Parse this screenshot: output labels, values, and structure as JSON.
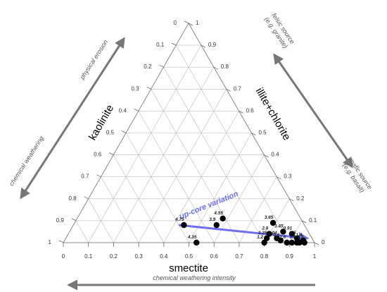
{
  "chart_data": {
    "type": "scatter",
    "subtype": "ternary",
    "axes": {
      "bottom": {
        "label": "smectite",
        "ticks": [
          "0",
          "0.1",
          "0.2",
          "0.3",
          "0.4",
          "0.5",
          "0.6",
          "0.7",
          "0.8",
          "0.9",
          "1"
        ]
      },
      "left": {
        "label": "kaolinite",
        "ticks": [
          "0",
          "0.1",
          "0.2",
          "0.3",
          "0.4",
          "0.5",
          "0.6",
          "0.7",
          "0.8",
          "0.9",
          "1"
        ]
      },
      "right": {
        "label": "illite+chlorite",
        "ticks": [
          "0",
          "0.1",
          "0.2",
          "0.3",
          "0.4",
          "0.5",
          "0.6",
          "0.7",
          "0.8",
          "0.9",
          "1"
        ]
      }
    },
    "grid": true,
    "points": [
      {
        "label": "4.75",
        "smectite": 0.44,
        "illite": 0.08,
        "kaolinite": 0.48
      },
      {
        "label": "4.55",
        "smectite": 0.58,
        "illite": 0.11,
        "kaolinite": 0.31
      },
      {
        "label": "3.9",
        "smectite": 0.57,
        "illite": 0.08,
        "kaolinite": 0.35
      },
      {
        "label": "3.65",
        "smectite": 0.79,
        "illite": 0.09,
        "kaolinite": 0.12
      },
      {
        "label": "4.35",
        "smectite": 0.53,
        "illite": 0.0,
        "kaolinite": 0.47
      },
      {
        "label": "2.8",
        "smectite": 0.8,
        "illite": 0.04,
        "kaolinite": 0.16
      },
      {
        "label": "3.45",
        "smectite": 0.85,
        "illite": 0.05,
        "kaolinite": 0.1
      },
      {
        "label": "3.25",
        "smectite": 0.8,
        "illite": 0.02,
        "kaolinite": 0.18
      },
      {
        "label": "3.04",
        "smectite": 0.84,
        "illite": 0.02,
        "kaolinite": 0.14
      },
      {
        "label": "0.91",
        "smectite": 0.89,
        "illite": 0.04,
        "kaolinite": 0.07
      },
      {
        "label": "2.5",
        "smectite": 0.92,
        "illite": 0.02,
        "kaolinite": 0.06
      },
      {
        "label": "1.2",
        "smectite": 0.8,
        "illite": 0.0,
        "kaolinite": 0.2
      },
      {
        "label": "0.8",
        "smectite": 0.86,
        "illite": 0.01,
        "kaolinite": 0.13
      },
      {
        "label": "1.4",
        "smectite": 0.95,
        "illite": 0.01,
        "kaolinite": 0.04
      },
      {
        "label": "1.6",
        "smectite": 0.89,
        "illite": 0.0,
        "kaolinite": 0.11
      },
      {
        "label": "1.8",
        "smectite": 0.93,
        "illite": 0.0,
        "kaolinite": 0.07
      },
      {
        "label": "2.3",
        "smectite": 0.96,
        "illite": 0.0,
        "kaolinite": 0.04
      },
      {
        "label": "",
        "smectite": 0.91,
        "illite": 0.0,
        "kaolinite": 0.09
      },
      {
        "label": "",
        "smectite": 0.94,
        "illite": 0.0,
        "kaolinite": 0.06
      }
    ],
    "trend": {
      "label": "up-core variation",
      "from": {
        "smectite": 0.42,
        "illite": 0.08,
        "kaolinite": 0.5
      },
      "to": {
        "smectite": 0.96,
        "illite": 0.02,
        "kaolinite": 0.02
      },
      "color": "#6e6ef0"
    },
    "annotations": {
      "physical_erosion": "physical erosion",
      "chemical_weathering": "chemical weathering",
      "felsic_source_line1": "felsic source",
      "felsic_source_line2": "(e.g. granite)",
      "mafic_source_line1": "mafic source",
      "mafic_source_line2": "(e.g. basalt)",
      "weathering_intensity": "chemical weathering intensity"
    },
    "colors": {
      "points": "#000000",
      "grid": "#bbbbbb",
      "frame": "#888888",
      "trend": "#6e6ef0",
      "arrows": "#777777"
    }
  }
}
